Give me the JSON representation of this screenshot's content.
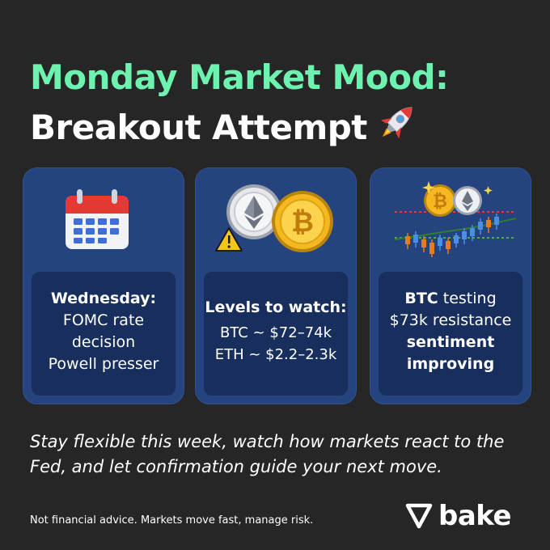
{
  "title": {
    "line1": "Monday Market Mood:",
    "line2": "Breakout Attempt"
  },
  "cards": [
    {
      "icon": "calendar-icon",
      "lines": [
        "Wednesday:",
        "FOMC rate",
        "decision",
        "Powell presser"
      ]
    },
    {
      "icon": "ethereum-bitcoin-coins-icon",
      "lines": [
        "Levels to watch:",
        "BTC ~ $72–74k",
        "ETH ~ $2.2–2.3k"
      ]
    },
    {
      "icon": "candlestick-chart-icon",
      "lines": [
        "BTC",
        " testing",
        "$73k resistance",
        "sentiment",
        "improving"
      ]
    }
  ],
  "closing": "Stay flexible this week, watch how markets react to the Fed, and let confirmation guide your next move.",
  "disclaimer": "Not financial advice. Markets move fast, manage risk.",
  "brand": "bake",
  "colors": {
    "background": "#262626",
    "accent_green": "#6ef2b0",
    "card_bg": "#24437f",
    "card_inner": "#182f5e"
  }
}
